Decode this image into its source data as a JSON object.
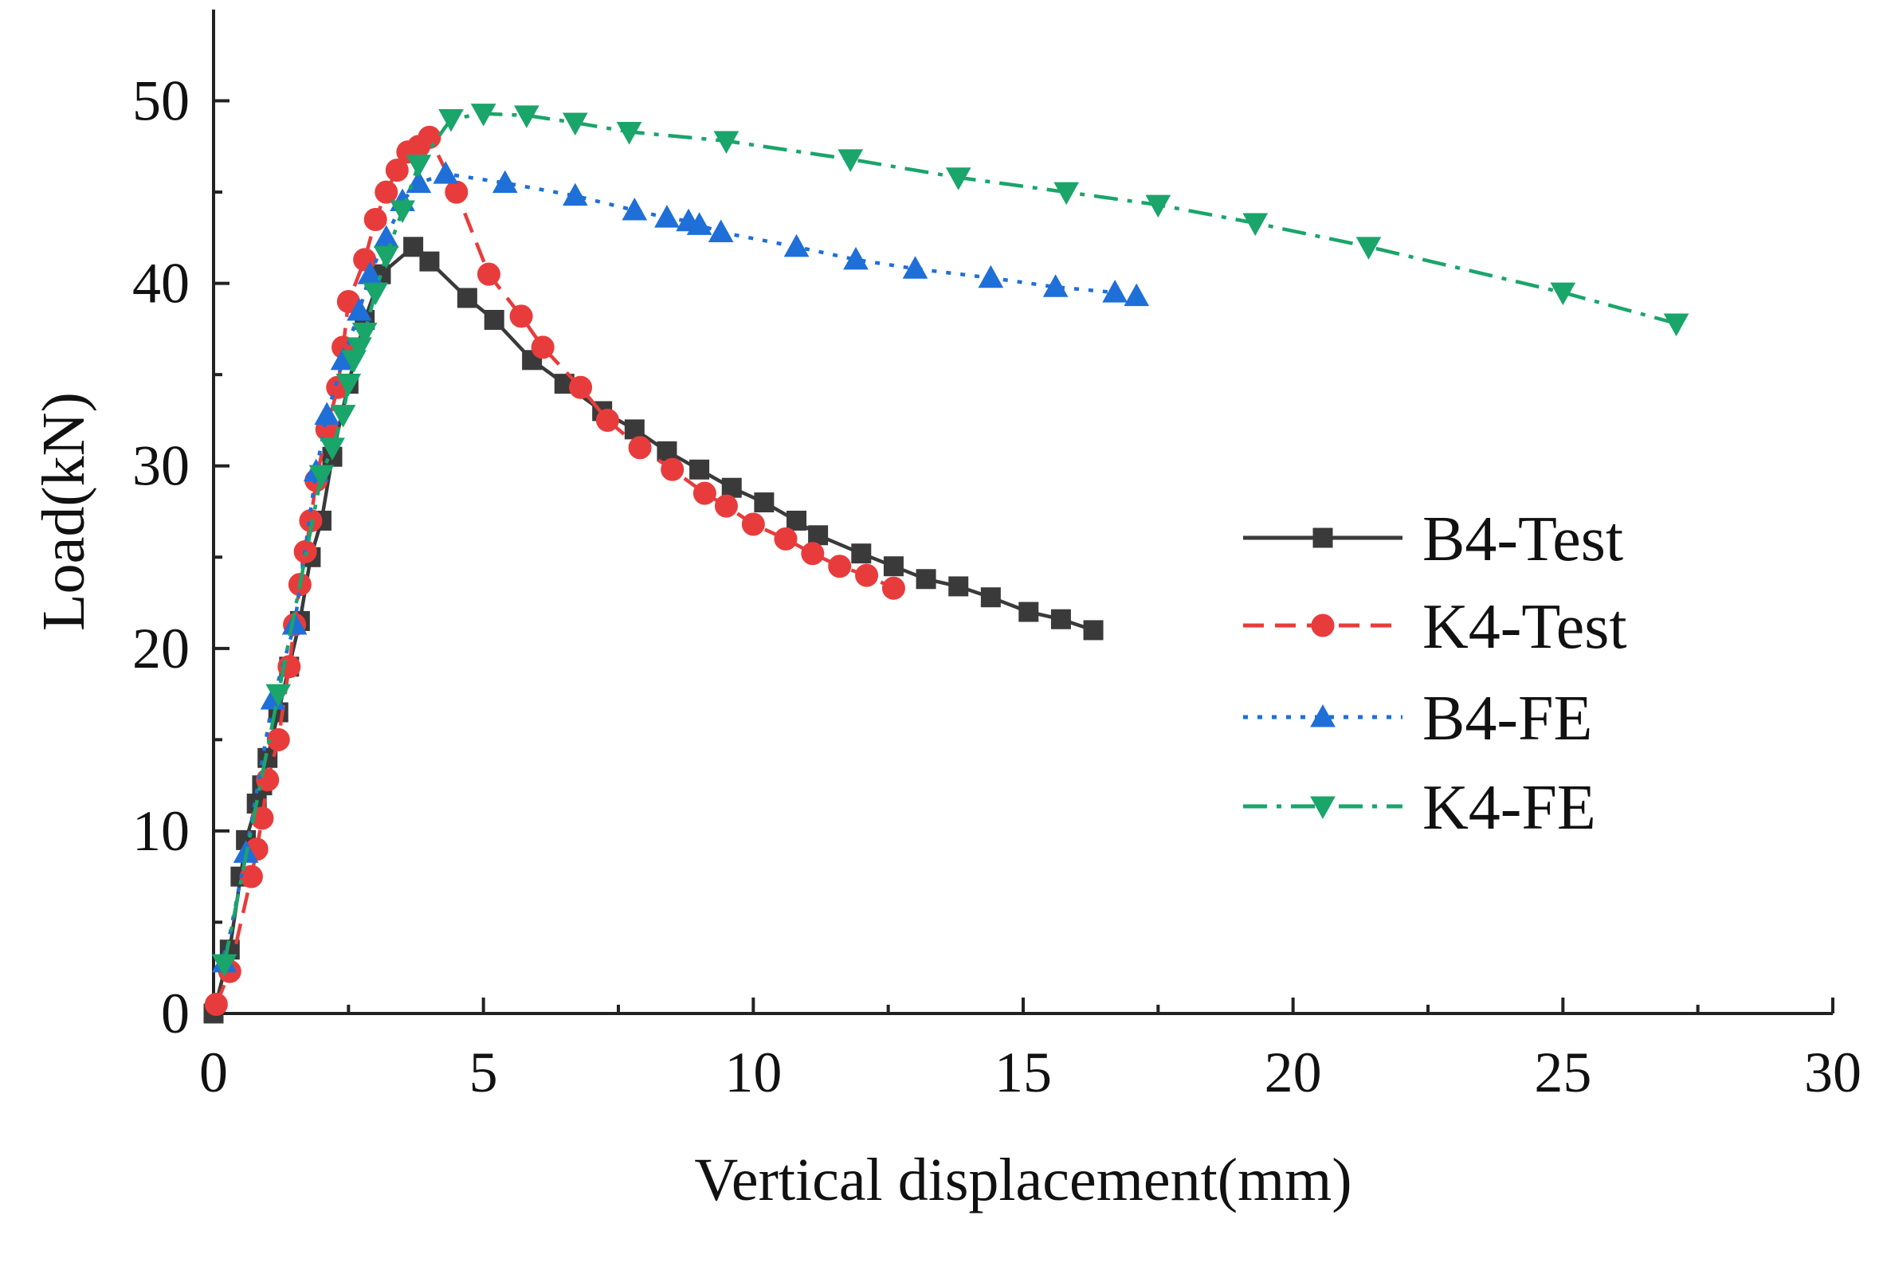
{
  "chart_data": {
    "type": "line",
    "title": "",
    "xlabel": "Vertical displacement(mm)",
    "ylabel": "Load(kN)",
    "xlim": [
      0,
      30
    ],
    "ylim": [
      0,
      55
    ],
    "xticks": [
      0,
      5,
      10,
      15,
      20,
      25,
      30
    ],
    "yticks": [
      0,
      10,
      20,
      30,
      40,
      50
    ],
    "grid": false,
    "legend_position": "center-right",
    "series": [
      {
        "name": "B4-Test",
        "color": "#3a3a3a",
        "line_style": "solid",
        "marker": "square",
        "points": [
          [
            0,
            0
          ],
          [
            0.3,
            3.5
          ],
          [
            0.5,
            7.5
          ],
          [
            0.6,
            9.5
          ],
          [
            0.8,
            11.5
          ],
          [
            0.9,
            12.5
          ],
          [
            1.0,
            14.0
          ],
          [
            1.2,
            16.5
          ],
          [
            1.4,
            19.0
          ],
          [
            1.6,
            21.5
          ],
          [
            1.8,
            25.0
          ],
          [
            2.0,
            27.0
          ],
          [
            2.2,
            30.5
          ],
          [
            2.5,
            34.5
          ],
          [
            2.8,
            38.0
          ],
          [
            3.1,
            40.5
          ],
          [
            3.7,
            42.0
          ],
          [
            4.0,
            41.2
          ],
          [
            4.7,
            39.2
          ],
          [
            5.2,
            38.0
          ],
          [
            5.9,
            35.8
          ],
          [
            6.5,
            34.5
          ],
          [
            7.2,
            33.0
          ],
          [
            7.8,
            32.0
          ],
          [
            8.4,
            30.8
          ],
          [
            9.0,
            29.8
          ],
          [
            9.6,
            28.8
          ],
          [
            10.2,
            28.0
          ],
          [
            10.8,
            27.0
          ],
          [
            11.2,
            26.2
          ],
          [
            12.0,
            25.2
          ],
          [
            12.6,
            24.5
          ],
          [
            13.2,
            23.8
          ],
          [
            13.8,
            23.4
          ],
          [
            14.4,
            22.8
          ],
          [
            15.1,
            22.0
          ],
          [
            15.7,
            21.6
          ],
          [
            16.3,
            21.0
          ]
        ]
      },
      {
        "name": "K4-Test",
        "color": "#e83c3c",
        "line_style": "dashed",
        "marker": "circle",
        "points": [
          [
            0.05,
            0.5
          ],
          [
            0.3,
            2.3
          ],
          [
            0.7,
            7.5
          ],
          [
            0.8,
            9.0
          ],
          [
            0.9,
            10.7
          ],
          [
            1.0,
            12.8
          ],
          [
            1.2,
            15.0
          ],
          [
            1.4,
            19.0
          ],
          [
            1.5,
            21.3
          ],
          [
            1.6,
            23.5
          ],
          [
            1.7,
            25.3
          ],
          [
            1.8,
            27.0
          ],
          [
            1.9,
            29.2
          ],
          [
            2.1,
            32.0
          ],
          [
            2.3,
            34.3
          ],
          [
            2.4,
            36.5
          ],
          [
            2.5,
            39.0
          ],
          [
            2.8,
            41.3
          ],
          [
            3.0,
            43.5
          ],
          [
            3.2,
            45.0
          ],
          [
            3.4,
            46.2
          ],
          [
            3.6,
            47.2
          ],
          [
            3.8,
            47.5
          ],
          [
            4.0,
            48.0
          ],
          [
            4.5,
            45.0
          ],
          [
            5.1,
            40.5
          ],
          [
            5.7,
            38.2
          ],
          [
            6.1,
            36.5
          ],
          [
            6.8,
            34.3
          ],
          [
            7.3,
            32.5
          ],
          [
            7.9,
            31.0
          ],
          [
            8.5,
            29.8
          ],
          [
            9.1,
            28.5
          ],
          [
            9.5,
            27.8
          ],
          [
            10.0,
            26.8
          ],
          [
            10.6,
            26.0
          ],
          [
            11.1,
            25.2
          ],
          [
            11.6,
            24.5
          ],
          [
            12.1,
            24.0
          ],
          [
            12.6,
            23.3
          ]
        ]
      },
      {
        "name": "B4-FE",
        "color": "#1f6fd8",
        "line_style": "dotted",
        "marker": "triangle-up",
        "points": [
          [
            0.2,
            2.8
          ],
          [
            0.6,
            8.8
          ],
          [
            1.1,
            17.2
          ],
          [
            1.5,
            21.3
          ],
          [
            1.9,
            29.7
          ],
          [
            2.1,
            32.8
          ],
          [
            2.4,
            35.8
          ],
          [
            2.7,
            38.5
          ],
          [
            2.9,
            40.5
          ],
          [
            3.2,
            42.5
          ],
          [
            3.5,
            44.5
          ],
          [
            3.8,
            45.5
          ],
          [
            4.3,
            46.0
          ],
          [
            5.4,
            45.5
          ],
          [
            6.7,
            44.8
          ],
          [
            7.8,
            44.0
          ],
          [
            8.4,
            43.6
          ],
          [
            8.8,
            43.4
          ],
          [
            9.0,
            43.2
          ],
          [
            9.4,
            42.8
          ],
          [
            10.8,
            42.0
          ],
          [
            11.9,
            41.3
          ],
          [
            13.0,
            40.8
          ],
          [
            14.4,
            40.3
          ],
          [
            15.6,
            39.8
          ],
          [
            16.7,
            39.5
          ],
          [
            17.1,
            39.3
          ]
        ]
      },
      {
        "name": "K4-FE",
        "color": "#1aa56a",
        "line_style": "dash-dot",
        "marker": "triangle-down",
        "points": [
          [
            0.2,
            2.7
          ],
          [
            1.2,
            17.5
          ],
          [
            2.0,
            29.5
          ],
          [
            2.2,
            31.0
          ],
          [
            2.4,
            32.8
          ],
          [
            2.5,
            34.5
          ],
          [
            2.6,
            35.8
          ],
          [
            2.7,
            36.5
          ],
          [
            2.8,
            37.3
          ],
          [
            3.0,
            39.5
          ],
          [
            3.2,
            41.5
          ],
          [
            3.5,
            44.0
          ],
          [
            3.8,
            46.5
          ],
          [
            4.4,
            49.0
          ],
          [
            5.0,
            49.3
          ],
          [
            5.8,
            49.2
          ],
          [
            6.7,
            48.8
          ],
          [
            7.7,
            48.3
          ],
          [
            9.5,
            47.8
          ],
          [
            11.8,
            46.8
          ],
          [
            13.8,
            45.8
          ],
          [
            15.8,
            45.0
          ],
          [
            17.5,
            44.3
          ],
          [
            19.3,
            43.3
          ],
          [
            21.4,
            42.0
          ],
          [
            25.0,
            39.5
          ],
          [
            27.1,
            37.8
          ]
        ]
      }
    ]
  }
}
